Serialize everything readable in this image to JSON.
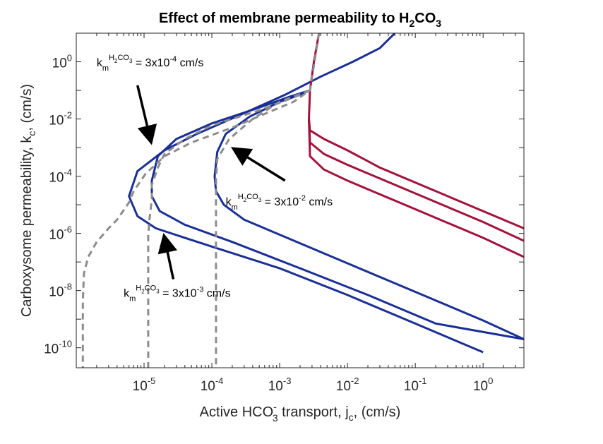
{
  "chart_data": {
    "type": "line",
    "title": {
      "main": "Effect of membrane permeability to H",
      "sub1": "2",
      "mid": "CO",
      "sub2": "3"
    },
    "xlabel": {
      "a": "Active HCO",
      "sup": "-",
      "sub": "3",
      "b": " transport, j",
      "sub2": "c",
      "c": ", (cm/s)"
    },
    "ylabel": {
      "a": "Carboxysome permeability, k",
      "sub": "c",
      "b": ", (cm/s)"
    },
    "x_scale": "log",
    "y_scale": "log",
    "xlim": [
      1e-06,
      4
    ],
    "ylim": [
      2e-11,
      10
    ],
    "grid": false,
    "x_ticks": [
      {
        "value": 1e-05,
        "base": "10",
        "exp": "-5"
      },
      {
        "value": 0.0001,
        "base": "10",
        "exp": "-4"
      },
      {
        "value": 0.001,
        "base": "10",
        "exp": "-3"
      },
      {
        "value": 0.01,
        "base": "10",
        "exp": "-2"
      },
      {
        "value": 0.1,
        "base": "10",
        "exp": "-1"
      },
      {
        "value": 1,
        "base": "10",
        "exp": "0"
      }
    ],
    "y_ticks": [
      {
        "value": 1e-10,
        "base": "10",
        "exp": "-10"
      },
      {
        "value": 1e-08,
        "base": "10",
        "exp": "-8"
      },
      {
        "value": 1e-06,
        "base": "10",
        "exp": "-6"
      },
      {
        "value": 0.0001,
        "base": "10",
        "exp": "-4"
      },
      {
        "value": 0.01,
        "base": "10",
        "exp": "-2"
      },
      {
        "value": 1,
        "base": "10",
        "exp": "0"
      }
    ],
    "colors": {
      "blue": "#1a2f96",
      "red": "#a3123a",
      "gray": "#8c8c8c",
      "axis": "#262626"
    },
    "series": [
      {
        "color": "blue",
        "style": "solid",
        "points": [
          [
            0.05,
            10
          ],
          [
            0.03,
            3
          ],
          [
            0.012,
            1
          ],
          [
            0.004,
            0.3
          ],
          [
            0.0012,
            0.07
          ],
          [
            0.0003,
            0.016
          ],
          [
            6e-05,
            0.003
          ],
          [
            2e-05,
            0.0008
          ],
          [
            8e-06,
            0.00015
          ],
          [
            6e-06,
            2e-05
          ],
          [
            8e-06,
            4e-06
          ],
          [
            1.5e-05,
            1.5e-06
          ],
          [
            4e-05,
            7e-07
          ],
          [
            0.00012,
            3e-07
          ],
          [
            0.001,
            6e-08
          ],
          [
            0.01,
            7e-09
          ],
          [
            0.1,
            7e-10
          ],
          [
            1,
            7e-11
          ]
        ]
      },
      {
        "color": "blue",
        "style": "solid",
        "points": [
          [
            0.0028,
            0.1
          ],
          [
            0.0014,
            0.06
          ],
          [
            0.0005,
            0.025
          ],
          [
            0.0001,
            0.007
          ],
          [
            3e-05,
            0.002
          ],
          [
            1.6e-05,
            0.0005
          ],
          [
            1.3e-05,
            7e-05
          ],
          [
            1.3e-05,
            2e-05
          ],
          [
            1.7e-05,
            6e-06
          ],
          [
            4e-05,
            2e-06
          ],
          [
            0.0002,
            5e-07
          ],
          [
            0.002,
            6e-08
          ],
          [
            0.02,
            7e-09
          ],
          [
            0.2,
            7e-10
          ],
          [
            4,
            2e-10
          ]
        ]
      },
      {
        "color": "blue",
        "style": "solid",
        "points": [
          [
            0.0028,
            0.1
          ],
          [
            0.002,
            0.07
          ],
          [
            0.001,
            0.04
          ],
          [
            0.00036,
            0.012
          ],
          [
            0.00016,
            0.003
          ],
          [
            0.00012,
            0.0007
          ],
          [
            0.00011,
            0.0001
          ],
          [
            0.000115,
            3e-05
          ],
          [
            0.00015,
            1e-05
          ],
          [
            0.0003,
            3e-06
          ],
          [
            0.001,
            9e-07
          ],
          [
            0.01,
            9e-08
          ],
          [
            0.1,
            9e-09
          ],
          [
            1,
            9e-10
          ],
          [
            4,
            2e-10
          ]
        ]
      },
      {
        "color": "red",
        "style": "solid",
        "points": [
          [
            0.0038,
            10
          ],
          [
            0.0032,
            1
          ],
          [
            0.0028,
            0.1
          ],
          [
            0.0027,
            0.01
          ],
          [
            0.0028,
            0.004
          ],
          [
            0.0045,
            0.002
          ],
          [
            0.01,
            0.0008
          ],
          [
            0.03,
            0.0002
          ],
          [
            0.3,
            2e-05
          ],
          [
            4,
            1.5e-06
          ]
        ]
      },
      {
        "color": "red",
        "style": "solid",
        "points": [
          [
            0.0027,
            0.01
          ],
          [
            0.0028,
            0.0015
          ],
          [
            0.0045,
            0.0006
          ],
          [
            0.01,
            0.00025
          ],
          [
            0.1,
            2.5e-05
          ],
          [
            1,
            2.5e-06
          ],
          [
            4,
            5.5e-07
          ]
        ]
      },
      {
        "color": "red",
        "style": "solid",
        "points": [
          [
            0.0027,
            0.01
          ],
          [
            0.0028,
            0.0005
          ],
          [
            0.0045,
            0.00017
          ],
          [
            0.01,
            7e-05
          ],
          [
            0.1,
            7e-06
          ],
          [
            1,
            7e-07
          ],
          [
            4,
            1.5e-07
          ]
        ]
      },
      {
        "color": "gray",
        "style": "dashed",
        "points": [
          [
            0.0038,
            10
          ],
          [
            0.0028,
            0.1
          ],
          [
            0.0016,
            0.04
          ],
          [
            0.0006,
            0.015
          ],
          [
            0.0002,
            0.005
          ],
          [
            5e-05,
            0.0015
          ],
          [
            2e-05,
            0.0005
          ],
          [
            1.05e-05,
            0.00012
          ],
          [
            7e-06,
            3e-05
          ],
          [
            6e-06,
            1.2e-05
          ],
          [
            4e-06,
            3e-06
          ],
          [
            3e-06,
            1.5e-06
          ],
          [
            2e-06,
            5e-07
          ],
          [
            1.5e-06,
            1.5e-07
          ],
          [
            1.3e-06,
            4e-08
          ],
          [
            1.25e-06,
            4e-09
          ],
          [
            1.25e-06,
            2e-11
          ]
        ]
      },
      {
        "color": "gray",
        "style": "dashed",
        "points": [
          [
            0.0028,
            0.1
          ],
          [
            0.0014,
            0.05
          ],
          [
            0.0005,
            0.02
          ],
          [
            0.0001,
            0.006
          ],
          [
            4e-05,
            0.002
          ],
          [
            2e-05,
            0.0006
          ],
          [
            1.6e-05,
            0.0002
          ],
          [
            1.3e-05,
            5e-05
          ],
          [
            1.3e-05,
            1.5e-05
          ],
          [
            1.2e-05,
            3e-06
          ],
          [
            1.15e-05,
            8e-07
          ],
          [
            1.15e-05,
            1e-09
          ],
          [
            1.15e-05,
            2e-11
          ]
        ]
      },
      {
        "color": "gray",
        "style": "dashed",
        "points": [
          [
            0.0028,
            0.1
          ],
          [
            0.001,
            0.04
          ],
          [
            0.0004,
            0.01
          ],
          [
            0.00018,
            0.002
          ],
          [
            0.00012,
            0.0004
          ],
          [
            0.000115,
            8e-05
          ],
          [
            0.000115,
            2e-05
          ],
          [
            0.000115,
            1e-08
          ],
          [
            0.000115,
            2e-11
          ]
        ]
      }
    ],
    "annotations": [
      {
        "id": "a1",
        "k": "k",
        "sub_m": "m",
        "sup_a": "H",
        "sup_sub": "2",
        "sup_b": "CO",
        "sup_sub2": "3",
        "text": " = 3x10",
        "exp": "-4",
        "unit": " cm/s",
        "x": 2e-06,
        "y": 0.7
      },
      {
        "id": "a2",
        "k": "k",
        "sub_m": "m",
        "sup_a": "H",
        "sup_sub": "2",
        "sup_b": "CO",
        "sup_sub2": "3",
        "text": " = 3x10",
        "exp": "-2",
        "unit": " cm/s",
        "x": 0.00016,
        "y": 9.5e-06
      },
      {
        "id": "a3",
        "k": "k",
        "sub_m": "m",
        "sup_a": "H",
        "sup_sub": "2",
        "sup_b": "CO",
        "sup_sub2": "3",
        "text": " = 3x10",
        "exp": "-3",
        "unit": " cm/s",
        "x": 5e-06,
        "y": 6e-09
      }
    ],
    "arrows": [
      {
        "from": [
          8e-06,
          0.15
        ],
        "to": [
          1.25e-05,
          0.0018
        ]
      },
      {
        "from": [
          0.0012,
          7e-05
        ],
        "to": [
          0.00022,
          0.00085
        ]
      },
      {
        "from": [
          2.7e-05,
          2.5e-08
        ],
        "to": [
          2e-05,
          7e-07
        ]
      }
    ]
  }
}
